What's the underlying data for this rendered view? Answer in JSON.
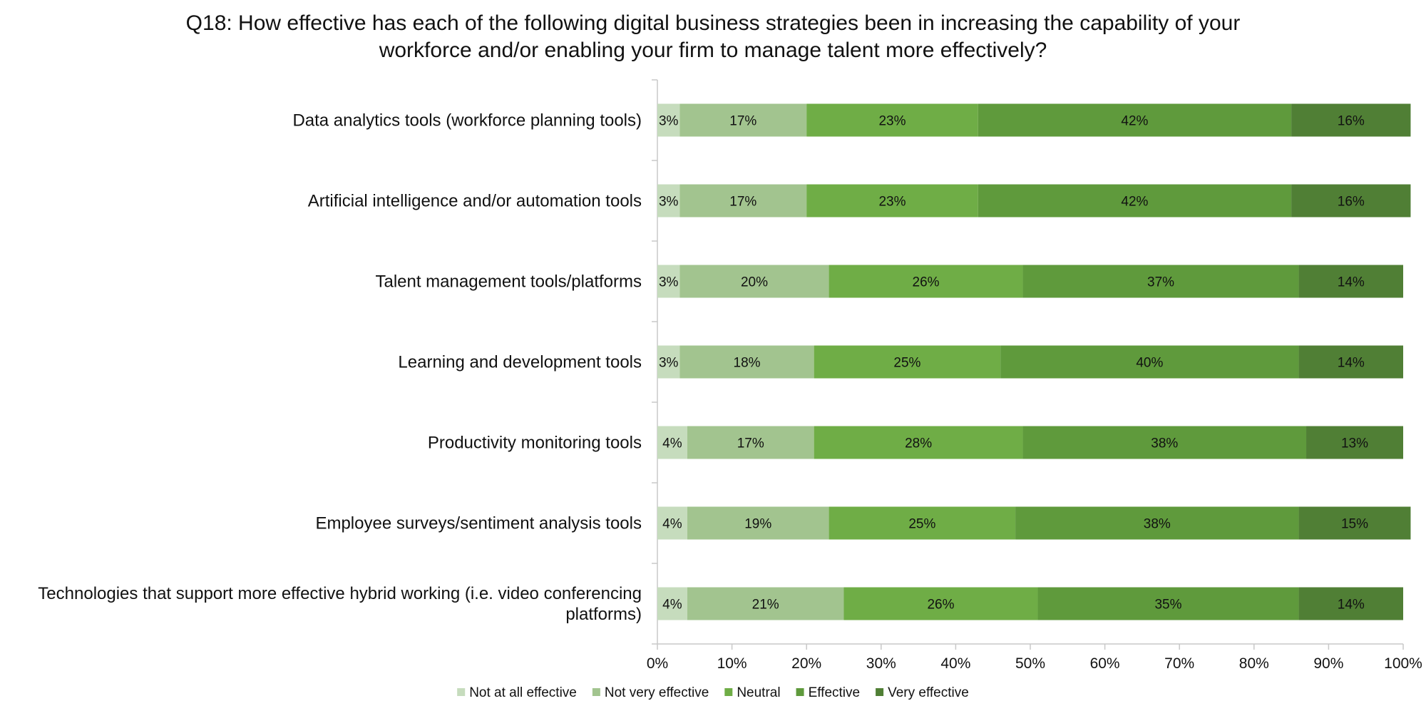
{
  "chart_data": {
    "type": "bar",
    "orientation": "horizontal",
    "stacked": true,
    "percent_stacked": true,
    "title": "Q18: How effective has each of the following digital business strategies been in increasing the capability of your workforce and/or enabling your firm to manage talent more effectively?",
    "categories": [
      "Data analytics tools (workforce planning tools)",
      "Artificial intelligence and/or automation tools",
      "Talent management tools/platforms",
      "Learning and development tools",
      "Productivity monitoring tools",
      "Employee surveys/sentiment analysis tools",
      "Technologies that support more effective hybrid working (i.e. video conferencing platforms)"
    ],
    "category_lines": [
      [
        "Data analytics tools (workforce planning tools)"
      ],
      [
        "Artificial intelligence and/or automation tools"
      ],
      [
        "Talent management tools/platforms"
      ],
      [
        "Learning and development tools"
      ],
      [
        "Productivity monitoring tools"
      ],
      [
        "Employee surveys/sentiment analysis tools"
      ],
      [
        "Technologies that support more effective hybrid working (i.e. video conferencing",
        "platforms)"
      ]
    ],
    "series": [
      {
        "name": "Not at all effective",
        "color": "#c6dcbd",
        "values": [
          3,
          3,
          3,
          3,
          4,
          4,
          4
        ]
      },
      {
        "name": "Not very effective",
        "color": "#a2c48f",
        "values": [
          17,
          17,
          20,
          18,
          17,
          19,
          21
        ]
      },
      {
        "name": "Neutral",
        "color": "#6fad46",
        "values": [
          23,
          23,
          26,
          25,
          28,
          25,
          26
        ]
      },
      {
        "name": "Effective",
        "color": "#5f9a3c",
        "values": [
          42,
          42,
          37,
          40,
          38,
          38,
          35
        ]
      },
      {
        "name": "Very effective",
        "color": "#507f35",
        "values": [
          16,
          16,
          14,
          14,
          13,
          15,
          14
        ]
      }
    ],
    "data_label_suffix": "%",
    "xlim": [
      0,
      100
    ],
    "x_ticks": [
      "0%",
      "10%",
      "20%",
      "30%",
      "40%",
      "50%",
      "60%",
      "70%",
      "80%",
      "90%",
      "100%"
    ],
    "grid": false,
    "legend_position": "bottom"
  }
}
